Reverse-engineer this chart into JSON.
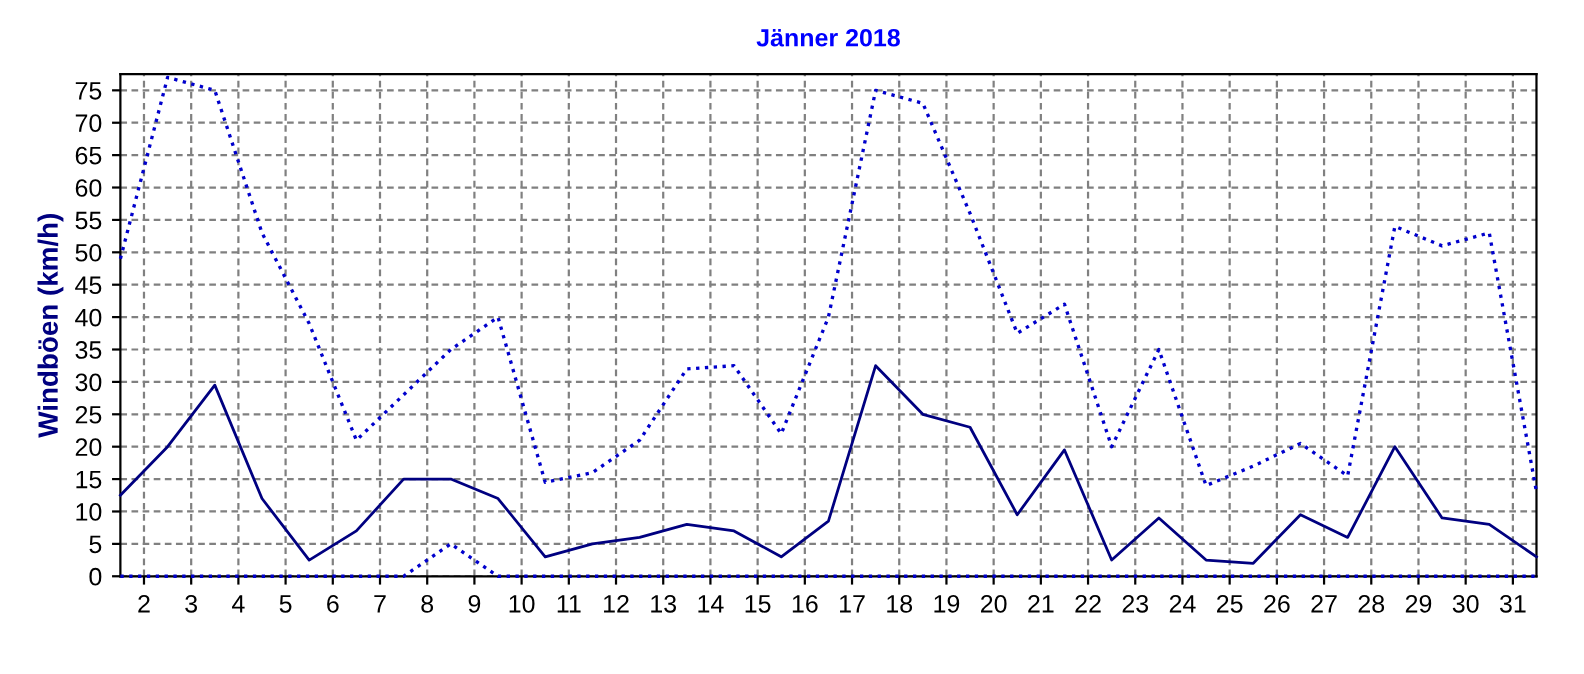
{
  "chart_data": {
    "type": "line",
    "title": "Jänner 2018",
    "ylabel": "Windböen (km/h)",
    "x": [
      1.5,
      2.5,
      3.5,
      4.5,
      5.5,
      6.5,
      7.5,
      8.5,
      9.5,
      10.5,
      11.5,
      12.5,
      13.5,
      14.5,
      15.5,
      16.5,
      17.5,
      18.5,
      19.5,
      20.5,
      21.5,
      22.5,
      23.5,
      24.5,
      25.5,
      26.5,
      27.5,
      28.5,
      29.5,
      30.5,
      31.5
    ],
    "series": [
      {
        "color": "#0000cc",
        "line_style": "dotted",
        "values": [
          49,
          77,
          75,
          53,
          39,
          21,
          28,
          35,
          40,
          14.5,
          16,
          21,
          32,
          32.5,
          22,
          40,
          75,
          73,
          56,
          37.5,
          42,
          20,
          35,
          14,
          17,
          20.5,
          15.5,
          54,
          51,
          53,
          13
        ]
      },
      {
        "color": "#000080",
        "line_style": "solid",
        "values": [
          12.5,
          20,
          29.5,
          12,
          2.5,
          7,
          15,
          15,
          12,
          3,
          5,
          6,
          8,
          7,
          3,
          8.5,
          32.5,
          25,
          23,
          9.5,
          19.5,
          2.5,
          9,
          2.5,
          2,
          9.5,
          6,
          20,
          9,
          8,
          3
        ]
      },
      {
        "color": "#0000cc",
        "line_style": "dotted",
        "values": [
          0,
          0,
          0,
          0,
          0,
          0,
          0,
          5,
          0,
          0,
          0,
          0,
          0,
          0,
          0,
          0,
          0,
          0,
          0,
          0,
          0,
          0,
          0,
          0,
          0,
          0,
          0,
          0,
          0,
          0,
          0
        ]
      }
    ],
    "xlim": [
      1.5,
      31.5
    ],
    "ylim": [
      0,
      77.5
    ],
    "xticks": [
      2,
      3,
      4,
      5,
      6,
      7,
      8,
      9,
      10,
      11,
      12,
      13,
      14,
      15,
      16,
      17,
      18,
      19,
      20,
      21,
      22,
      23,
      24,
      25,
      26,
      27,
      28,
      29,
      30,
      31
    ],
    "yticks": [
      0,
      5,
      10,
      15,
      20,
      25,
      30,
      35,
      40,
      45,
      50,
      55,
      60,
      65,
      70,
      75
    ],
    "grid": true,
    "legend": false
  }
}
